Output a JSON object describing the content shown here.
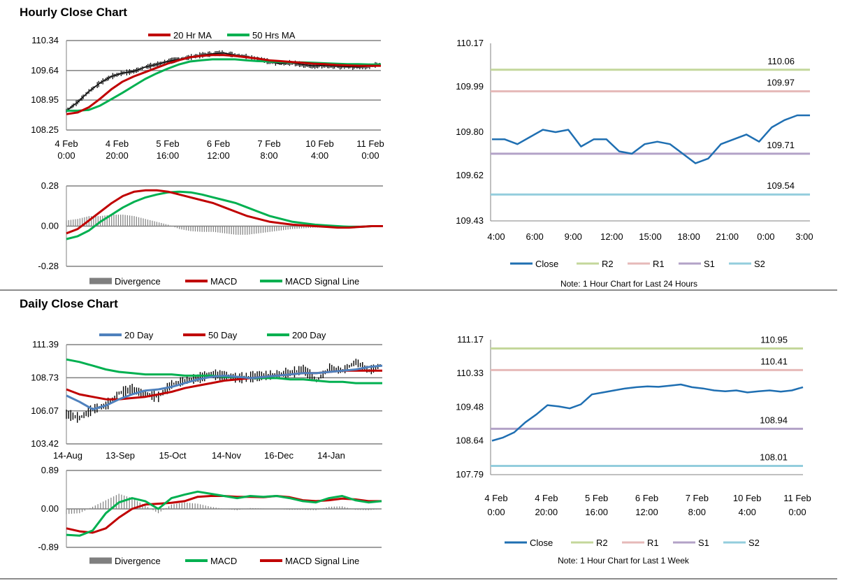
{
  "colors": {
    "ma20": "#c00000",
    "ma50": "#00b050",
    "day20": "#4f81bd",
    "day50": "#c00000",
    "day200": "#00b050",
    "close": "#1f6fb2",
    "r2": "#c4d79b",
    "r1": "#e6b9b8",
    "s1": "#b3a2c7",
    "s2": "#93cddd",
    "divergence": "#7f7f7f",
    "macd_red": "#c00000",
    "signal_green": "#00b050",
    "grid": "#808080"
  },
  "sections": {
    "hourly_title": "Hourly Close Chart",
    "daily_title": "Daily Close Chart"
  },
  "chart_data": [
    {
      "id": "hourly-price",
      "type": "line",
      "title": "Hourly Close Chart",
      "legend": [
        "20 Hr MA",
        "50 Hrs MA"
      ],
      "x_tick_labels": [
        [
          "4 Feb",
          "0:00"
        ],
        [
          "4 Feb",
          "20:00"
        ],
        [
          "5 Feb",
          "16:00"
        ],
        [
          "6 Feb",
          "12:00"
        ],
        [
          "7 Feb",
          "8:00"
        ],
        [
          "10 Feb",
          "4:00"
        ],
        [
          "11 Feb",
          "0:00"
        ]
      ],
      "y_ticks": [
        "110.34",
        "109.64",
        "108.95",
        "108.25"
      ],
      "ylim": [
        108.25,
        110.34
      ],
      "x": [
        0,
        5,
        10,
        15,
        20,
        25,
        30,
        35,
        40,
        45,
        50,
        55,
        60,
        65,
        70,
        75,
        80,
        85,
        90,
        95,
        100,
        105,
        110,
        115,
        120,
        125,
        130,
        135,
        140
      ],
      "close": [
        108.7,
        108.9,
        109.15,
        109.35,
        109.5,
        109.58,
        109.62,
        109.72,
        109.78,
        109.85,
        109.9,
        109.95,
        110.0,
        110.03,
        110.05,
        110.0,
        109.97,
        109.92,
        109.85,
        109.8,
        109.82,
        109.78,
        109.75,
        109.76,
        109.74,
        109.73,
        109.72,
        109.74,
        109.8
      ],
      "ma20": [
        108.62,
        108.66,
        108.78,
        108.98,
        109.2,
        109.38,
        109.5,
        109.6,
        109.7,
        109.8,
        109.88,
        109.95,
        109.98,
        110.0,
        110.0,
        109.98,
        109.95,
        109.92,
        109.88,
        109.86,
        109.84,
        109.82,
        109.8,
        109.79,
        109.77,
        109.76,
        109.75,
        109.75,
        109.75
      ],
      "ma50": [
        108.7,
        108.7,
        108.72,
        108.82,
        108.97,
        109.12,
        109.28,
        109.44,
        109.57,
        109.68,
        109.78,
        109.85,
        109.88,
        109.9,
        109.9,
        109.9,
        109.88,
        109.86,
        109.85,
        109.84,
        109.83,
        109.83,
        109.82,
        109.81,
        109.8,
        109.79,
        109.79,
        109.78,
        109.78
      ]
    },
    {
      "id": "hourly-macd",
      "type": "line",
      "legend": [
        "Divergence",
        "MACD",
        "MACD Signal Line"
      ],
      "y_ticks": [
        "0.28",
        "0.00",
        "-0.28"
      ],
      "ylim": [
        -0.28,
        0.28
      ],
      "x": [
        0,
        5,
        10,
        15,
        20,
        25,
        30,
        35,
        40,
        45,
        50,
        55,
        60,
        65,
        70,
        75,
        80,
        85,
        90,
        95,
        100,
        105,
        110,
        115,
        120,
        125,
        130,
        135,
        140
      ],
      "macd": [
        -0.05,
        -0.02,
        0.04,
        0.1,
        0.16,
        0.21,
        0.24,
        0.25,
        0.25,
        0.24,
        0.22,
        0.2,
        0.18,
        0.16,
        0.13,
        0.1,
        0.07,
        0.05,
        0.03,
        0.02,
        0.01,
        0.005,
        0.0,
        -0.005,
        -0.01,
        -0.01,
        -0.005,
        0.0,
        0.0
      ],
      "signal": [
        -0.09,
        -0.07,
        -0.03,
        0.03,
        0.08,
        0.13,
        0.17,
        0.2,
        0.22,
        0.235,
        0.24,
        0.235,
        0.22,
        0.2,
        0.18,
        0.16,
        0.13,
        0.1,
        0.07,
        0.05,
        0.03,
        0.02,
        0.01,
        0.005,
        0.0,
        -0.005,
        -0.005,
        0.0,
        0.0
      ],
      "divergence": [
        0.04,
        0.05,
        0.07,
        0.07,
        0.08,
        0.08,
        0.07,
        0.05,
        0.03,
        0.01,
        -0.02,
        -0.035,
        -0.04,
        -0.04,
        -0.05,
        -0.06,
        -0.06,
        -0.05,
        -0.04,
        -0.03,
        -0.02,
        -0.015,
        -0.01,
        -0.01,
        -0.01,
        -0.005,
        0.0,
        0.0,
        0.0
      ]
    },
    {
      "id": "hourly-pivot",
      "type": "line",
      "legend": [
        "Close",
        "R2",
        "R1",
        "S1",
        "S2"
      ],
      "x_tick_labels": [
        "4:00",
        "6:00",
        "9:00",
        "12:00",
        "15:00",
        "18:00",
        "21:00",
        "0:00",
        "3:00"
      ],
      "y_ticks": [
        "110.17",
        "109.99",
        "109.80",
        "109.62",
        "109.43"
      ],
      "ylim": [
        109.43,
        110.17
      ],
      "levels": {
        "R2": 110.06,
        "R1": 109.97,
        "S1": 109.71,
        "S2": 109.54
      },
      "level_labels": {
        "R2": "110.06",
        "R1": "109.97",
        "S1": "109.71",
        "S2": "109.54"
      },
      "close": [
        109.77,
        109.77,
        109.75,
        109.78,
        109.81,
        109.8,
        109.81,
        109.74,
        109.77,
        109.77,
        109.72,
        109.71,
        109.75,
        109.76,
        109.75,
        109.71,
        109.67,
        109.69,
        109.75,
        109.77,
        109.79,
        109.76,
        109.82,
        109.85,
        109.87,
        109.87
      ],
      "note": "Note: 1 Hour Chart for Last 24 Hours"
    },
    {
      "id": "daily-price",
      "type": "line",
      "title": "Daily Close Chart",
      "legend": [
        "20 Day",
        "50 Day",
        "200 Day"
      ],
      "x_tick_labels": [
        "14-Aug",
        "13-Sep",
        "15-Oct",
        "14-Nov",
        "16-Dec",
        "14-Jan"
      ],
      "y_ticks": [
        "111.39",
        "108.73",
        "106.07",
        "103.42"
      ],
      "ylim": [
        103.42,
        111.39
      ],
      "x": [
        0,
        10,
        20,
        30,
        40,
        50,
        60,
        70,
        80,
        90,
        100,
        110,
        120,
        130,
        140,
        150,
        160,
        170,
        180,
        190,
        200,
        210,
        220,
        230,
        240
      ],
      "close": [
        105.8,
        105.5,
        106.2,
        106.5,
        107.5,
        107.8,
        107.4,
        107.2,
        108.2,
        108.5,
        108.7,
        109.0,
        108.9,
        108.7,
        108.8,
        108.9,
        109.0,
        109.1,
        109.4,
        108.5,
        109.5,
        109.3,
        110.0,
        109.3,
        109.8
      ],
      "day20": [
        107.3,
        106.8,
        106.2,
        106.5,
        107.0,
        107.4,
        107.7,
        107.8,
        108.0,
        108.3,
        108.6,
        108.8,
        108.9,
        108.8,
        108.7,
        108.8,
        108.9,
        109.0,
        109.1,
        109.1,
        109.2,
        109.3,
        109.4,
        109.6,
        109.7
      ],
      "day50": [
        107.8,
        107.4,
        107.2,
        107.0,
        107.0,
        107.1,
        107.2,
        107.4,
        107.6,
        107.9,
        108.1,
        108.3,
        108.5,
        108.6,
        108.7,
        108.8,
        108.9,
        109.0,
        109.1,
        109.1,
        109.2,
        109.3,
        109.3,
        109.3,
        109.3
      ],
      "day200": [
        110.2,
        110.0,
        109.7,
        109.4,
        109.2,
        109.1,
        109.0,
        109.0,
        109.0,
        108.9,
        108.9,
        108.9,
        108.8,
        108.8,
        108.7,
        108.7,
        108.7,
        108.6,
        108.6,
        108.5,
        108.4,
        108.4,
        108.3,
        108.3,
        108.3
      ]
    },
    {
      "id": "daily-macd",
      "type": "line",
      "legend": [
        "Divergence",
        "MACD",
        "MACD Signal Line"
      ],
      "y_ticks": [
        "0.89",
        "0.00",
        "-0.89"
      ],
      "ylim": [
        -0.89,
        0.89
      ],
      "x": [
        0,
        10,
        20,
        30,
        40,
        50,
        60,
        70,
        80,
        90,
        100,
        110,
        120,
        130,
        140,
        150,
        160,
        170,
        180,
        190,
        200,
        210,
        220,
        230,
        240
      ],
      "macd": [
        -0.6,
        -0.62,
        -0.5,
        -0.1,
        0.15,
        0.25,
        0.18,
        0.0,
        0.25,
        0.33,
        0.4,
        0.35,
        0.3,
        0.25,
        0.3,
        0.28,
        0.3,
        0.25,
        0.18,
        0.15,
        0.25,
        0.3,
        0.2,
        0.15,
        0.18
      ],
      "signal": [
        -0.45,
        -0.52,
        -0.55,
        -0.45,
        -0.2,
        0.0,
        0.1,
        0.12,
        0.14,
        0.18,
        0.28,
        0.3,
        0.3,
        0.28,
        0.28,
        0.27,
        0.3,
        0.27,
        0.2,
        0.18,
        0.2,
        0.24,
        0.22,
        0.18,
        0.18
      ],
      "divergence": [
        -0.12,
        -0.1,
        0.05,
        0.2,
        0.35,
        0.25,
        0.08,
        -0.1,
        0.1,
        0.15,
        0.12,
        0.05,
        0.0,
        -0.03,
        0.02,
        0.01,
        0.0,
        -0.02,
        -0.02,
        -0.03,
        0.05,
        0.06,
        -0.02,
        -0.03,
        0.0
      ]
    },
    {
      "id": "daily-pivot",
      "type": "line",
      "legend": [
        "Close",
        "R2",
        "R1",
        "S1",
        "S2"
      ],
      "x_tick_labels": [
        [
          "4 Feb",
          "0:00"
        ],
        [
          "4 Feb",
          "20:00"
        ],
        [
          "5 Feb",
          "16:00"
        ],
        [
          "6 Feb",
          "12:00"
        ],
        [
          "7 Feb",
          "8:00"
        ],
        [
          "10 Feb",
          "4:00"
        ],
        [
          "11 Feb",
          "0:00"
        ]
      ],
      "y_ticks": [
        "111.17",
        "110.33",
        "109.48",
        "108.64",
        "107.79"
      ],
      "ylim": [
        107.79,
        111.17
      ],
      "levels": {
        "R2": 110.95,
        "R1": 110.41,
        "S1": 108.94,
        "S2": 108.01
      },
      "level_labels": {
        "R2": "110.95",
        "R1": "110.41",
        "S1": "108.94",
        "S2": "108.01"
      },
      "close": [
        108.64,
        108.72,
        108.85,
        109.1,
        109.3,
        109.53,
        109.5,
        109.45,
        109.55,
        109.8,
        109.85,
        109.9,
        109.95,
        109.98,
        110.0,
        109.99,
        110.02,
        110.05,
        109.98,
        109.95,
        109.9,
        109.88,
        109.9,
        109.85,
        109.88,
        109.9,
        109.87,
        109.9,
        109.98
      ],
      "note": "Note: 1 Hour Chart for Last 1 Week"
    }
  ]
}
